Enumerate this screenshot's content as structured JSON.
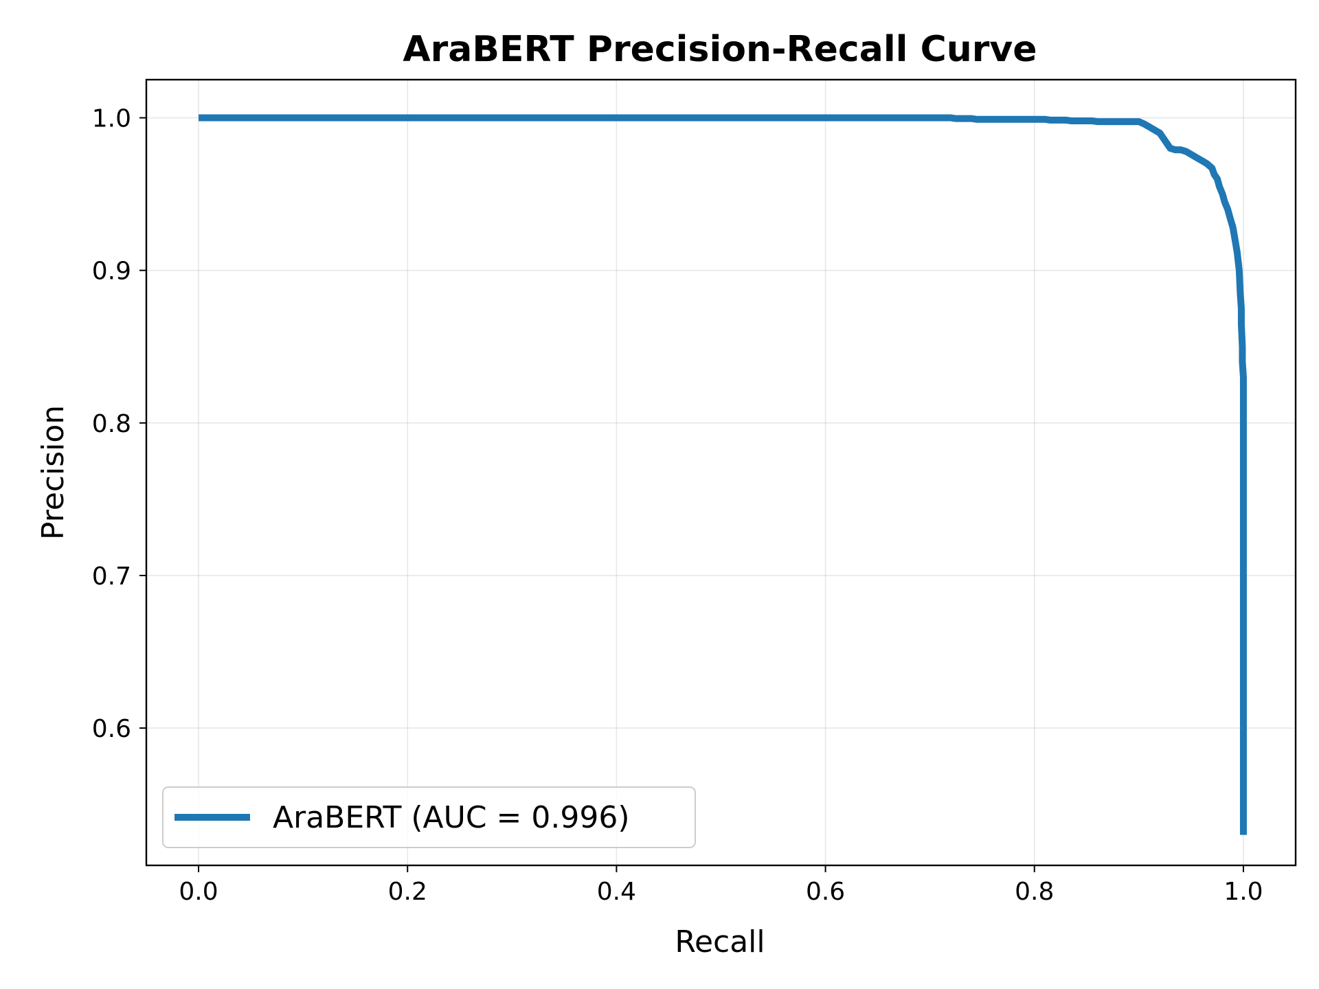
{
  "chart_data": {
    "type": "line",
    "title": "AraBERT Precision-Recall Curve",
    "xlabel": "Recall",
    "ylabel": "Precision",
    "xlim": [
      -0.05,
      1.05
    ],
    "ylim": [
      0.51,
      1.025
    ],
    "xticks": [
      0.0,
      0.2,
      0.4,
      0.6,
      0.8,
      1.0
    ],
    "xtick_labels": [
      "0.0",
      "0.2",
      "0.4",
      "0.6",
      "0.8",
      "1.0"
    ],
    "yticks": [
      0.6,
      0.7,
      0.8,
      0.9,
      1.0
    ],
    "ytick_labels": [
      "0.6",
      "0.7",
      "0.8",
      "0.9",
      "1.0"
    ],
    "grid": true,
    "legend_position": "lower-left",
    "series": [
      {
        "name": "AraBERT (AUC = 0.996)",
        "color": "#1f77b4",
        "x": [
          0.0,
          0.72,
          0.725,
          0.74,
          0.745,
          0.81,
          0.815,
          0.83,
          0.835,
          0.855,
          0.86,
          0.9,
          0.905,
          0.91,
          0.915,
          0.92,
          0.925,
          0.93,
          0.935,
          0.94,
          0.945,
          0.95,
          0.955,
          0.96,
          0.965,
          0.97,
          0.972,
          0.975,
          0.977,
          0.98,
          0.982,
          0.985,
          0.987,
          0.99,
          0.992,
          0.994,
          0.996,
          0.997,
          0.998,
          0.998,
          0.999,
          0.999,
          1.0,
          1.0,
          1.0
        ],
        "y": [
          1.0,
          1.0,
          0.9995,
          0.9995,
          0.999,
          0.999,
          0.9985,
          0.9985,
          0.998,
          0.998,
          0.9975,
          0.9975,
          0.996,
          0.994,
          0.992,
          0.99,
          0.985,
          0.98,
          0.979,
          0.979,
          0.978,
          0.976,
          0.974,
          0.972,
          0.97,
          0.967,
          0.963,
          0.96,
          0.955,
          0.95,
          0.945,
          0.94,
          0.935,
          0.928,
          0.92,
          0.912,
          0.9,
          0.885,
          0.875,
          0.865,
          0.85,
          0.84,
          0.83,
          0.7,
          0.53
        ]
      }
    ]
  }
}
